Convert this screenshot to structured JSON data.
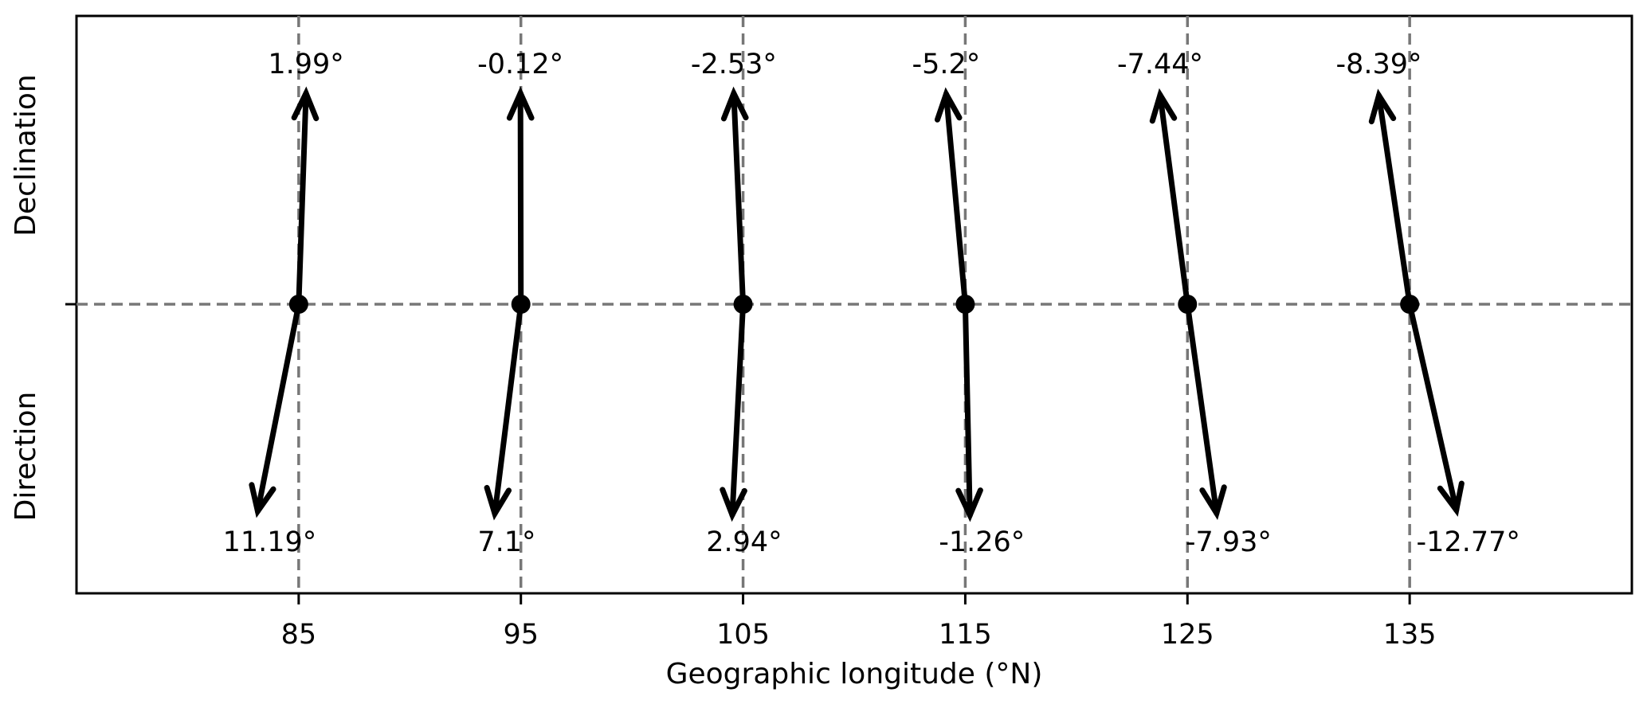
{
  "chart_data": {
    "type": "vector",
    "xlabel": "Geographic  longitude (°N)",
    "ylabel_top": "Declination",
    "ylabel_bottom": "Direction",
    "xlim": [
      75,
      145
    ],
    "xticks": [
      85,
      95,
      105,
      115,
      125,
      135
    ],
    "grid": "dashed at x ticks and y=0",
    "series": [
      {
        "x": 85,
        "declination": 1.99,
        "direction": 11.19,
        "declination_label": "1.99°",
        "direction_label": "11.19°"
      },
      {
        "x": 95,
        "declination": -0.12,
        "direction": 7.1,
        "declination_label": "-0.12°",
        "direction_label": "7.1°"
      },
      {
        "x": 105,
        "declination": -2.53,
        "direction": 2.94,
        "declination_label": "-2.53°",
        "direction_label": "2.94°"
      },
      {
        "x": 115,
        "declination": -5.2,
        "direction": -1.26,
        "declination_label": "-5.2°",
        "direction_label": "-1.26°"
      },
      {
        "x": 125,
        "declination": -7.44,
        "direction": -7.93,
        "declination_label": "-7.44°",
        "direction_label": "-7.93°"
      },
      {
        "x": 135,
        "declination": -8.39,
        "direction": -12.77,
        "declination_label": "-8.39°",
        "direction_label": "-12.77°"
      }
    ]
  }
}
